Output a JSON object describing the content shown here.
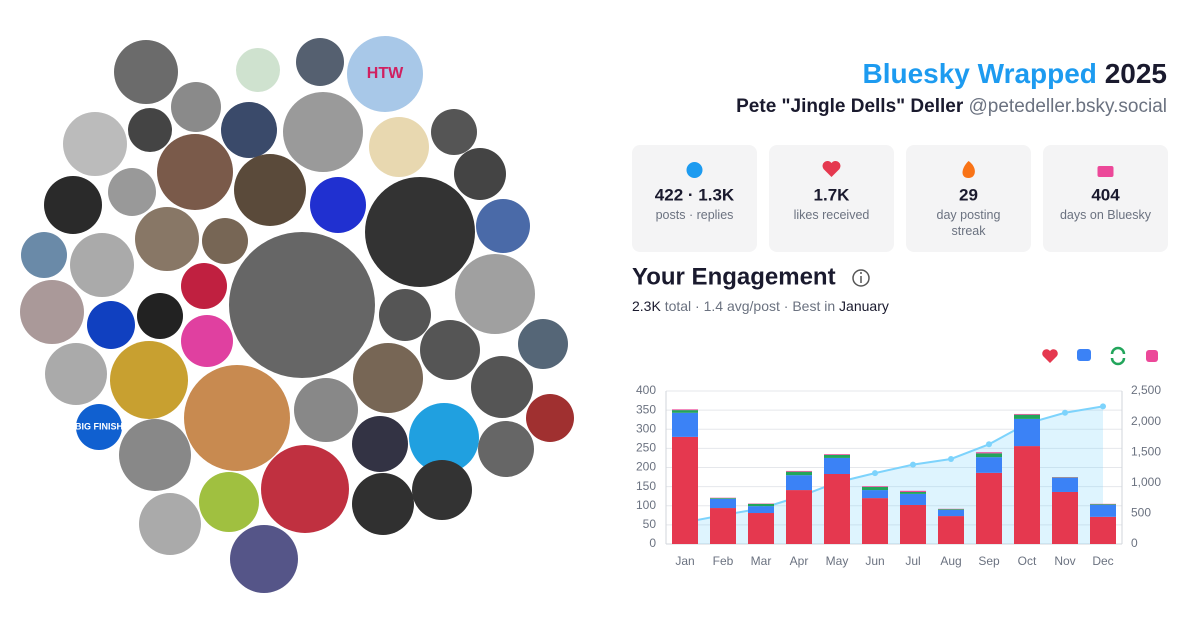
{
  "header": {
    "title": "Bluesky Wrapped",
    "year": "2025",
    "name": "Pete \"Jingle Dells\" Deller",
    "handle": "@petedeller.bsky.social"
  },
  "stats": [
    {
      "value": "422 · 1.3K",
      "label": "posts · replies"
    },
    {
      "value": "1.7K",
      "label": "likes received"
    },
    {
      "value": "29",
      "label": "day posting streak"
    },
    {
      "value": "404",
      "label": "days on Bluesky"
    }
  ],
  "avatars": {
    "labels": [
      "HTW",
      "BIG FINISH"
    ]
  },
  "engagement": {
    "title": "Your Engagement",
    "total": "2.3K",
    "total_text": "total ·",
    "avg": "1.4",
    "avg_text": "avg/post ·",
    "best_text": "Best in",
    "best": "January"
  },
  "chart_data": {
    "type": "bar",
    "stacked": true,
    "grid": true,
    "categories": [
      "Jan",
      "Feb",
      "Mar",
      "Apr",
      "May",
      "Jun",
      "Jul",
      "Aug",
      "Sep",
      "Oct",
      "Nov",
      "Dec"
    ],
    "series": [
      {
        "color": "#e5384f",
        "values": [
          280,
          94,
          81,
          141,
          183,
          120,
          102,
          73,
          186,
          256,
          136,
          71
        ]
      },
      {
        "color": "#3b82f6",
        "values": [
          63,
          24,
          18,
          39,
          42,
          21,
          29,
          16,
          41,
          71,
          37,
          31
        ]
      },
      {
        "color": "#22a55b",
        "values": [
          7,
          2,
          6,
          9,
          8,
          8,
          5,
          2,
          10,
          11,
          1,
          2
        ]
      },
      {
        "color": "#ec4899",
        "values": [
          2,
          1,
          1,
          2,
          2,
          2,
          3,
          1,
          3,
          2,
          1,
          1
        ]
      },
      {
        "type": "line",
        "axis": "y2",
        "color": "#7dd3fc",
        "values": [
          353,
          473,
          580,
          772,
          1007,
          1158,
          1297,
          1389,
          1629,
          1969,
          2144,
          2249
        ]
      }
    ],
    "ylim": [
      0,
      400
    ],
    "yticks": [
      0,
      50,
      100,
      150,
      200,
      250,
      300,
      350,
      400
    ],
    "y2lim": [
      0,
      2500
    ],
    "y2ticks": [
      0,
      500,
      {
        "value": 1000,
        "label": "1,000"
      },
      {
        "value": 1500,
        "label": "1,500"
      },
      {
        "value": 2000,
        "label": "2,000"
      },
      {
        "value": 2500,
        "label": "2,500"
      }
    ]
  }
}
